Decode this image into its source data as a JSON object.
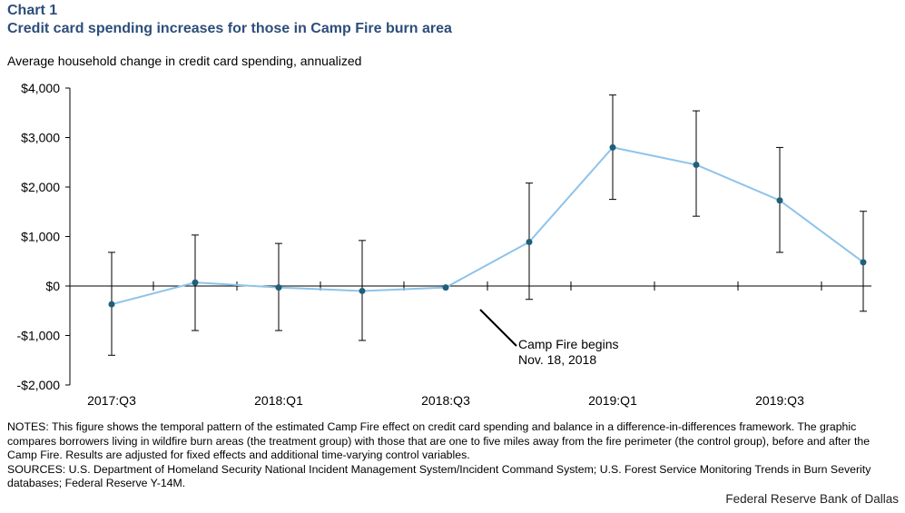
{
  "header": {
    "chart_number": "Chart 1",
    "title": "Credit card spending increases for those in Camp Fire burn area"
  },
  "chart_data": {
    "type": "line",
    "title": "Credit card spending increases for those in Camp Fire burn area",
    "ylabel": "Average household change in credit card spending, annualized",
    "xlabel": "",
    "ylim": [
      -2000,
      4000
    ],
    "yticks": [
      4000,
      3000,
      2000,
      1000,
      0,
      -1000,
      -2000
    ],
    "ytick_labels": [
      "$4,000",
      "$3,000",
      "$2,000",
      "$1,000",
      "$0",
      "-$1,000",
      "-$2,000"
    ],
    "x": [
      "2017:Q3",
      "2017:Q4",
      "2018:Q1",
      "2018:Q2",
      "2018:Q3",
      "2018:Q4",
      "2019:Q1",
      "2019:Q2",
      "2019:Q3",
      "2019:Q4"
    ],
    "xtick_labels": [
      "2017:Q3",
      "",
      "2018:Q1",
      "",
      "2018:Q3",
      "",
      "2019:Q1",
      "",
      "2019:Q3",
      ""
    ],
    "series": [
      {
        "values": [
          -370,
          70,
          -30,
          -100,
          -30,
          890,
          2800,
          2450,
          1730,
          480
        ],
        "error_low": [
          -1400,
          -900,
          -900,
          -1100,
          -30,
          -270,
          1750,
          1410,
          680,
          -510
        ],
        "error_high": [
          680,
          1030,
          860,
          920,
          -30,
          2080,
          3860,
          3540,
          2800,
          1510
        ],
        "color": "#8ec3ea",
        "marker_color": "#1f5f7a"
      }
    ],
    "annotations": [
      {
        "text_line1": "Camp Fire begins",
        "text_line2": "Nov. 18, 2018",
        "x_between": [
          "2018:Q3",
          "2018:Q4"
        ],
        "y": 0
      }
    ],
    "grid": false
  },
  "notes": {
    "text": "NOTES: This figure shows the temporal pattern of the estimated Camp Fire effect on credit card spending and balance in a difference-in-differences framework. The graphic compares borrowers living in wildfire burn areas (the treatment group) with those that are one to five miles away from the fire perimeter (the control group), before and after the Camp Fire. Results are adjusted for fixed effects and additional time-varying control variables.",
    "sources": "SOURCES: U.S. Department of Homeland Security National Incident Management System/Incident Command System; U.S. Forest Service Monitoring Trends in Burn Severity databases; Federal Reserve Y-14M."
  },
  "credit": "Federal Reserve Bank of Dallas"
}
